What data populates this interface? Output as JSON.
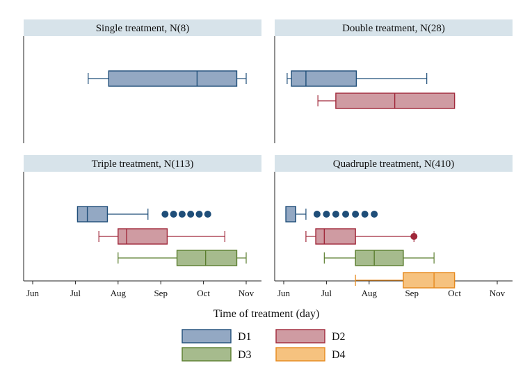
{
  "chart_data": {
    "type": "boxplot",
    "xlabel": "Time of treatment (day)",
    "x_ticks": [
      "Jun",
      "Jul",
      "Aug",
      "Sep",
      "Oct",
      "Nov"
    ],
    "xlim": [
      -0.1,
      5.25
    ],
    "colors": {
      "D1": {
        "fill": "#93a8c3",
        "stroke": "#1f4e79"
      },
      "D2": {
        "fill": "#cf9ba2",
        "stroke": "#a0283a"
      },
      "D3": {
        "fill": "#a6bb8d",
        "stroke": "#5a7d2e"
      },
      "D4": {
        "fill": "#f6c27f",
        "stroke": "#e6891c"
      }
    },
    "legend": [
      "D1",
      "D2",
      "D3",
      "D4"
    ],
    "panels": [
      {
        "title": "Single treatment, N(8)",
        "boxes": [
          {
            "dose": "D1",
            "whisker_low": 1.3,
            "q1": 1.78,
            "median": 3.85,
            "q3": 4.78,
            "whisker_high": 5.0,
            "outliers": []
          }
        ]
      },
      {
        "title": "Double treatment, N(28)",
        "boxes": [
          {
            "dose": "D1",
            "whisker_low": 0.08,
            "q1": 0.18,
            "median": 0.52,
            "q3": 1.7,
            "whisker_high": 3.35,
            "outliers": []
          },
          {
            "dose": "D2",
            "whisker_low": 0.8,
            "q1": 1.22,
            "median": 2.6,
            "q3": 4.0,
            "whisker_high": 4.0,
            "outliers": []
          }
        ]
      },
      {
        "title": "Triple treatment, N(113)",
        "boxes": [
          {
            "dose": "D1",
            "whisker_low": 1.05,
            "q1": 1.05,
            "median": 1.28,
            "q3": 1.75,
            "whisker_high": 2.7,
            "outliers": [
              3.1,
              3.3,
              3.5,
              3.7,
              3.9,
              4.1
            ]
          },
          {
            "dose": "D2",
            "whisker_low": 1.55,
            "q1": 2.0,
            "median": 2.2,
            "q3": 3.15,
            "whisker_high": 4.5,
            "outliers": []
          },
          {
            "dose": "D3",
            "whisker_low": 2.0,
            "q1": 3.38,
            "median": 4.05,
            "q3": 4.78,
            "whisker_high": 5.0,
            "outliers": []
          }
        ]
      },
      {
        "title": "Quadruple treatment, N(410)",
        "boxes": [
          {
            "dose": "D1",
            "whisker_low": 0.05,
            "q1": 0.05,
            "median": 0.28,
            "q3": 0.28,
            "whisker_high": 0.52,
            "outliers": [
              0.78,
              1.0,
              1.22,
              1.45,
              1.68,
              1.9,
              2.12
            ]
          },
          {
            "dose": "D2",
            "whisker_low": 0.52,
            "q1": 0.75,
            "median": 0.95,
            "q3": 1.68,
            "whisker_high": 3.05,
            "outliers": [
              3.05
            ]
          },
          {
            "dose": "D3",
            "whisker_low": 0.95,
            "q1": 1.68,
            "median": 2.12,
            "q3": 2.8,
            "whisker_high": 3.52,
            "outliers": []
          },
          {
            "dose": "D4",
            "whisker_low": 1.68,
            "q1": 2.8,
            "median": 3.52,
            "q3": 4.0,
            "whisker_high": 4.0,
            "outliers": []
          }
        ]
      }
    ]
  }
}
